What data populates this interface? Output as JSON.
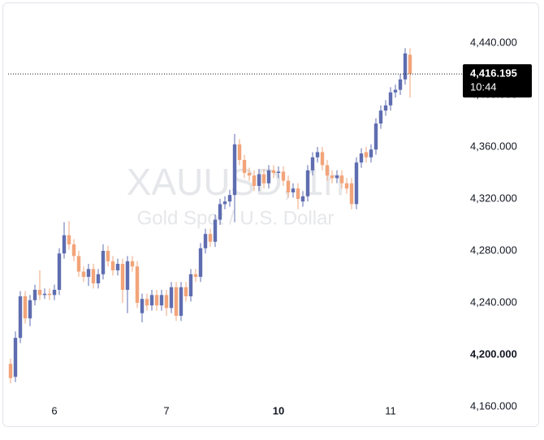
{
  "chart_data": {
    "type": "candlestick",
    "watermark": "XAUUSD, 1h",
    "subtitle": "Gold Spot / U.S. Dollar",
    "up_color": "#5f6db0",
    "down_color": "#f2a47a",
    "xlim": [
      -0.5,
      92
    ],
    "xticks": [
      {
        "value": 9,
        "label": "6"
      },
      {
        "value": 32,
        "label": "7"
      },
      {
        "value": 55,
        "label": "10"
      },
      {
        "value": 78,
        "label": "11"
      }
    ],
    "ylim": [
      4145,
      4470
    ],
    "yticks": [
      {
        "value": 4160,
        "label": "4,160.000"
      },
      {
        "value": 4200,
        "label": "4,200.000"
      },
      {
        "value": 4240,
        "label": "4,240.000"
      },
      {
        "value": 4280,
        "label": "4,280.000"
      },
      {
        "value": 4320,
        "label": "4,320.000"
      },
      {
        "value": 4360,
        "label": "4,360.000"
      },
      {
        "value": 4400,
        "label": "4,400.000"
      },
      {
        "value": 4440,
        "label": "4,440.000"
      }
    ],
    "last_price": {
      "value": 4416.195,
      "label": "4,416.195",
      "time": "10:44"
    },
    "open": [
      4193,
      4183,
      4213,
      4245,
      4228,
      4242,
      4250,
      4246,
      4247,
      4246,
      4250,
      4278,
      4292,
      4285,
      4276,
      4264,
      4260,
      4266,
      4255,
      4262,
      4280,
      4272,
      4265,
      4270,
      4250,
      4272,
      4268,
      4232,
      4243,
      4238,
      4246,
      4238,
      4246,
      4236,
      4252,
      4230,
      4252,
      4245,
      4262,
      4260,
      4282,
      4293,
      4287,
      4304,
      4316,
      4318,
      4323,
      4362,
      4350,
      4340,
      4338,
      4330,
      4339,
      4332,
      4342,
      4340,
      4341,
      4334,
      4325,
      4328,
      4318,
      4322,
      4342,
      4352,
      4356,
      4346,
      4338,
      4336,
      4338,
      4332,
      4332,
      4316,
      4348,
      4356,
      4352,
      4358,
      4378,
      4388,
      4392,
      4402,
      4404,
      4412,
      4431
    ],
    "high": [
      4197,
      4218,
      4249,
      4249,
      4246,
      4254,
      4265,
      4251,
      4251,
      4254,
      4282,
      4302,
      4303,
      4289,
      4280,
      4268,
      4270,
      4270,
      4266,
      4285,
      4284,
      4276,
      4274,
      4274,
      4276,
      4276,
      4272,
      4247,
      4247,
      4250,
      4250,
      4250,
      4250,
      4256,
      4256,
      4256,
      4256,
      4266,
      4266,
      4286,
      4297,
      4297,
      4308,
      4320,
      4322,
      4327,
      4370,
      4366,
      4354,
      4344,
      4342,
      4343,
      4343,
      4346,
      4346,
      4345,
      4345,
      4338,
      4332,
      4332,
      4326,
      4346,
      4356,
      4360,
      4360,
      4350,
      4342,
      4342,
      4342,
      4336,
      4336,
      4352,
      4359,
      4360,
      4362,
      4382,
      4392,
      4396,
      4406,
      4408,
      4416,
      4436,
      4436
    ],
    "low": [
      4178,
      4179,
      4209,
      4224,
      4222,
      4238,
      4242,
      4243,
      4242,
      4242,
      4246,
      4274,
      4281,
      4272,
      4260,
      4256,
      4253,
      4251,
      4251,
      4258,
      4268,
      4261,
      4261,
      4240,
      4232,
      4264,
      4236,
      4225,
      4234,
      4234,
      4234,
      4234,
      4230,
      4232,
      4226,
      4226,
      4241,
      4241,
      4256,
      4256,
      4278,
      4283,
      4283,
      4300,
      4312,
      4314,
      4302,
      4346,
      4336,
      4334,
      4326,
      4326,
      4328,
      4328,
      4336,
      4336,
      4330,
      4321,
      4321,
      4312,
      4314,
      4318,
      4338,
      4348,
      4342,
      4334,
      4332,
      4332,
      4328,
      4324,
      4312,
      4312,
      4344,
      4348,
      4348,
      4354,
      4374,
      4384,
      4388,
      4398,
      4400,
      4408,
      4398
    ],
    "close": [
      4182,
      4213,
      4245,
      4228,
      4242,
      4250,
      4246,
      4247,
      4246,
      4250,
      4278,
      4292,
      4285,
      4276,
      4264,
      4260,
      4266,
      4255,
      4262,
      4280,
      4272,
      4265,
      4270,
      4250,
      4272,
      4268,
      4240,
      4243,
      4238,
      4246,
      4238,
      4246,
      4236,
      4252,
      4230,
      4252,
      4245,
      4262,
      4260,
      4282,
      4293,
      4287,
      4304,
      4316,
      4318,
      4323,
      4362,
      4350,
      4340,
      4338,
      4330,
      4339,
      4332,
      4342,
      4340,
      4341,
      4334,
      4325,
      4328,
      4320,
      4322,
      4342,
      4352,
      4356,
      4346,
      4338,
      4336,
      4338,
      4332,
      4328,
      4316,
      4348,
      4355,
      4352,
      4358,
      4378,
      4388,
      4392,
      4402,
      4404,
      4412,
      4432,
      4416.195
    ]
  }
}
